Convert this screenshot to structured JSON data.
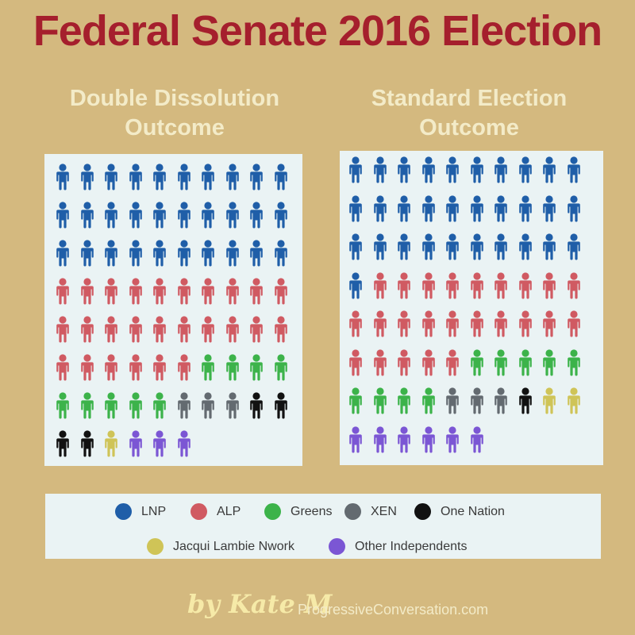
{
  "title": "Federal Senate 2016 Election",
  "colors": {
    "LNP": "#1f5ea8",
    "ALP": "#d05a62",
    "Greens": "#3cb34a",
    "XEN": "#636a70",
    "One Nation": "#111111",
    "Jacqui Lambie Nwork": "#cfc457",
    "Other Independents": "#7b56d4"
  },
  "chart_data": [
    {
      "type": "waffle",
      "title": "Double Dissolution Outcome",
      "columns": 10,
      "categories": [
        "LNP",
        "ALP",
        "Greens",
        "XEN",
        "One Nation",
        "Jacqui Lambie Nwork",
        "Other Independents"
      ],
      "values": [
        30,
        26,
        9,
        3,
        4,
        1,
        3
      ]
    },
    {
      "type": "waffle",
      "title": "Standard Election Outcome",
      "columns": 10,
      "categories": [
        "LNP",
        "ALP",
        "Greens",
        "XEN",
        "One Nation",
        "Jacqui Lambie Nwork",
        "Other Independents"
      ],
      "values": [
        31,
        24,
        9,
        3,
        1,
        2,
        6
      ]
    }
  ],
  "legend": [
    "LNP",
    "ALP",
    "Greens",
    "XEN",
    "One Nation",
    "Jacqui Lambie Nwork",
    "Other Independents"
  ],
  "credit": {
    "by": "by Kate M",
    "site": "ProgressiveConversation.com"
  }
}
